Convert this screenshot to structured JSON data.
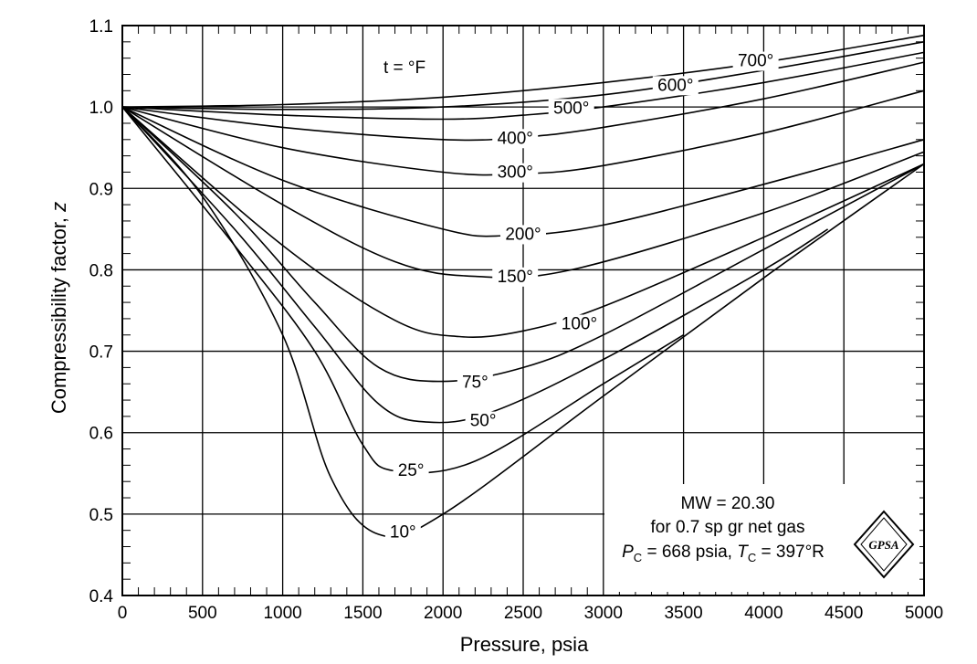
{
  "chart_data": {
    "type": "line",
    "xlabel": "Pressure, psia",
    "ylabel_main": "Compressibility factor, ",
    "ylabel_var": "z",
    "xlim": [
      0,
      5000
    ],
    "ylim": [
      0.4,
      1.1
    ],
    "x_ticks": [
      "0",
      "500",
      "1000",
      "1500",
      "2000",
      "2500",
      "3000",
      "3500",
      "4000",
      "4500",
      "5000"
    ],
    "y_ticks": [
      "0.4",
      "0.5",
      "0.6",
      "0.7",
      "0.8",
      "0.9",
      "1.0",
      "1.1"
    ],
    "grid": true,
    "legend_title": "t = °F",
    "series": [
      {
        "name": "700°",
        "points": [
          [
            0,
            1.0
          ],
          [
            1000,
            1.003
          ],
          [
            2000,
            1.012
          ],
          [
            3000,
            1.03
          ],
          [
            4000,
            1.055
          ],
          [
            5000,
            1.088
          ]
        ]
      },
      {
        "name": "600°",
        "points": [
          [
            0,
            1.0
          ],
          [
            1000,
            0.997
          ],
          [
            2000,
            1.0
          ],
          [
            3000,
            1.015
          ],
          [
            4000,
            1.045
          ],
          [
            5000,
            1.08
          ]
        ]
      },
      {
        "name": "500°",
        "points": [
          [
            0,
            1.0
          ],
          [
            1000,
            0.99
          ],
          [
            2000,
            0.985
          ],
          [
            2500,
            0.99
          ],
          [
            3000,
            1.0
          ],
          [
            4000,
            1.03
          ],
          [
            5000,
            1.067
          ]
        ]
      },
      {
        "name": "400°",
        "points": [
          [
            0,
            1.0
          ],
          [
            1000,
            0.975
          ],
          [
            2000,
            0.96
          ],
          [
            2500,
            0.963
          ],
          [
            3000,
            0.975
          ],
          [
            4000,
            1.01
          ],
          [
            5000,
            1.055
          ]
        ]
      },
      {
        "name": "300°",
        "points": [
          [
            0,
            1.0
          ],
          [
            1000,
            0.95
          ],
          [
            2000,
            0.92
          ],
          [
            2500,
            0.918
          ],
          [
            3000,
            0.928
          ],
          [
            4000,
            0.968
          ],
          [
            5000,
            1.02
          ]
        ]
      },
      {
        "name": "200°",
        "points": [
          [
            0,
            1.0
          ],
          [
            1000,
            0.91
          ],
          [
            2000,
            0.85
          ],
          [
            2400,
            0.842
          ],
          [
            3000,
            0.855
          ],
          [
            4000,
            0.905
          ],
          [
            5000,
            0.96
          ]
        ]
      },
      {
        "name": "150°",
        "points": [
          [
            0,
            1.0
          ],
          [
            1000,
            0.88
          ],
          [
            1700,
            0.81
          ],
          [
            2200,
            0.792
          ],
          [
            2800,
            0.8
          ],
          [
            4000,
            0.87
          ],
          [
            5000,
            0.945
          ]
        ]
      },
      {
        "name": "100°",
        "points": [
          [
            0,
            1.0
          ],
          [
            1000,
            0.83
          ],
          [
            1700,
            0.738
          ],
          [
            2100,
            0.718
          ],
          [
            2500,
            0.725
          ],
          [
            3000,
            0.755
          ],
          [
            4000,
            0.84
          ],
          [
            5000,
            0.93
          ]
        ]
      },
      {
        "name": "75°",
        "points": [
          [
            0,
            1.0
          ],
          [
            700,
            0.87
          ],
          [
            1200,
            0.76
          ],
          [
            1600,
            0.68
          ],
          [
            2000,
            0.663
          ],
          [
            2500,
            0.68
          ],
          [
            3000,
            0.72
          ],
          [
            4000,
            0.825
          ],
          [
            5000,
            0.93
          ]
        ]
      },
      {
        "name": "50°",
        "points": [
          [
            0,
            1.0
          ],
          [
            700,
            0.85
          ],
          [
            1200,
            0.73
          ],
          [
            1600,
            0.635
          ],
          [
            1900,
            0.613
          ],
          [
            2300,
            0.625
          ],
          [
            3000,
            0.69
          ],
          [
            4000,
            0.8
          ],
          [
            4400,
            0.85
          ]
        ]
      },
      {
        "name": "25°",
        "points": [
          [
            0,
            1.0
          ],
          [
            700,
            0.83
          ],
          [
            1200,
            0.7
          ],
          [
            1500,
            0.585
          ],
          [
            1700,
            0.553
          ],
          [
            2200,
            0.565
          ],
          [
            3000,
            0.66
          ],
          [
            3500,
            0.72
          ]
        ]
      },
      {
        "name": "10°",
        "points": [
          [
            0,
            1.0
          ],
          [
            500,
            0.89
          ],
          [
            1000,
            0.72
          ],
          [
            1300,
            0.545
          ],
          [
            1600,
            0.475
          ],
          [
            2000,
            0.5
          ],
          [
            3000,
            0.645
          ],
          [
            4000,
            0.79
          ],
          [
            5000,
            0.93
          ]
        ]
      }
    ],
    "annotations": {
      "mw": "MW = 20.30",
      "gas": "for 0.7 sp gr net gas",
      "pc_sym": "P",
      "pc_sub": "C",
      "pc_val": " = 668 psia,  ",
      "tc_sym": "T",
      "tc_sub": "C",
      "tc_val": " = 397°R"
    },
    "logo_text": "GPSA"
  }
}
